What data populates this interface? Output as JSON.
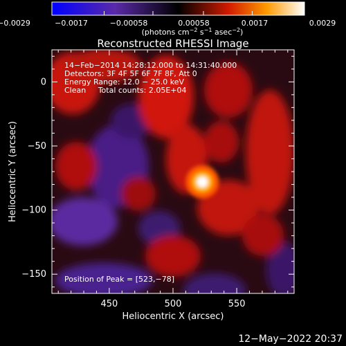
{
  "colorbar": {
    "tick_labels": [
      "−0.0029",
      "−0.0017",
      "−0.00058",
      "0.00058",
      "0.0017",
      "0.0029"
    ],
    "range": [
      -0.0029,
      0.0029
    ],
    "unit_main": "(photons cm",
    "unit_exp1": "−2",
    "unit_mid": " s",
    "unit_exp2": "−1",
    "unit_tail": " asec",
    "unit_exp3": "−2",
    "unit_close": ")"
  },
  "chart_data": {
    "type": "heatmap",
    "title": "Reconstructed RHESSI Image",
    "xlabel": "Heliocentric X (arcsec)",
    "ylabel": "Heliocentric Y (arcsec)",
    "xlim": [
      405,
      595
    ],
    "ylim": [
      -165,
      25
    ],
    "x_ticks": [
      450,
      500,
      550
    ],
    "y_ticks": [
      0,
      -50,
      -100,
      -150
    ],
    "x_tick_labels": [
      "450",
      "500",
      "550"
    ],
    "y_tick_labels": [
      "0",
      "−50",
      "−100",
      "−150"
    ],
    "peak": {
      "x": 523,
      "y": -78
    },
    "colorscale": "red-temperature (negative: blue/purple, positive: red/yellow/white)",
    "annotations": [
      "14−Feb−2014 14:28:12.000 to 14:31:40.000",
      "Detectors: 3F 4F 5F 6F 7F 8F, Att 0",
      "Energy Range: 12.0 − 25.0 keV",
      "Clean     Total counts: 2.05E+04"
    ],
    "peak_label": "Position of Peak = [523,−78]"
  },
  "footer": {
    "timestamp": "12−May−2022 20:37"
  }
}
